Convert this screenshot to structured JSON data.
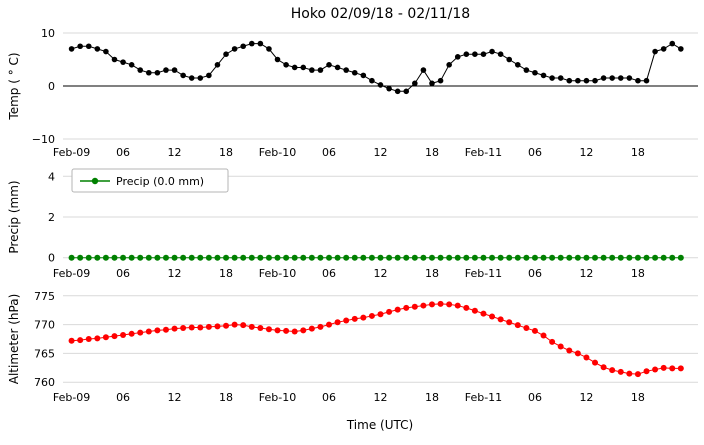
{
  "title": "Hoko 02/09/18 - 02/11/18",
  "xlabel": "Time (UTC)",
  "x_range": [
    -1,
    73
  ],
  "x_ticks": [
    0,
    6,
    12,
    18,
    24,
    30,
    36,
    42,
    48,
    54,
    60,
    66
  ],
  "x_ticklabels": [
    "Feb-09",
    "06",
    "12",
    "18",
    "Feb-10",
    "06",
    "12",
    "18",
    "Feb-11",
    "06",
    "12",
    "18"
  ],
  "x_hours": [
    0,
    1,
    2,
    3,
    4,
    5,
    6,
    7,
    8,
    9,
    10,
    11,
    12,
    13,
    14,
    15,
    16,
    17,
    18,
    19,
    20,
    21,
    22,
    23,
    24,
    25,
    26,
    27,
    28,
    29,
    30,
    31,
    32,
    33,
    34,
    35,
    36,
    37,
    38,
    39,
    40,
    41,
    42,
    43,
    44,
    45,
    46,
    47,
    48,
    49,
    50,
    51,
    52,
    53,
    54,
    55,
    56,
    57,
    58,
    59,
    60,
    61,
    62,
    63,
    64,
    65,
    66,
    67,
    68,
    69,
    70,
    71
  ],
  "chart_data": [
    {
      "type": "line",
      "name": "temperature",
      "ylabel": "Temp ( ° C)",
      "ylim": [
        -10,
        10
      ],
      "yticks": [
        -10,
        0,
        10
      ],
      "color": "#000000",
      "zero_line": true,
      "values": [
        7,
        7.5,
        7.5,
        7,
        6.5,
        5,
        4.5,
        4,
        3,
        2.5,
        2.5,
        3,
        3,
        2,
        1.5,
        1.5,
        2,
        4,
        6,
        7,
        7.5,
        8,
        8,
        7,
        5,
        4,
        3.5,
        3.5,
        3,
        3,
        4,
        3.5,
        3,
        2.5,
        2,
        1,
        0.2,
        -0.5,
        -1,
        -1,
        0.5,
        3,
        0.5,
        1,
        4,
        5.5,
        6,
        6,
        6,
        6.5,
        6,
        5,
        4,
        3,
        2.5,
        2,
        1.5,
        1.5,
        1,
        1,
        1,
        1,
        1.5,
        1.5,
        1.5,
        1.5,
        1,
        1,
        6.5,
        7,
        8,
        7
      ]
    },
    {
      "type": "line",
      "name": "precip",
      "ylabel": "Precip (mm)",
      "ylim": [
        -0.21,
        4.21
      ],
      "yticks": [
        0,
        2,
        4
      ],
      "color": "#008000",
      "legend": "Precip (0.0 mm)",
      "values": [
        0,
        0,
        0,
        0,
        0,
        0,
        0,
        0,
        0,
        0,
        0,
        0,
        0,
        0,
        0,
        0,
        0,
        0,
        0,
        0,
        0,
        0,
        0,
        0,
        0,
        0,
        0,
        0,
        0,
        0,
        0,
        0,
        0,
        0,
        0,
        0,
        0,
        0,
        0,
        0,
        0,
        0,
        0,
        0,
        0,
        0,
        0,
        0,
        0,
        0,
        0,
        0,
        0,
        0,
        0,
        0,
        0,
        0,
        0,
        0,
        0,
        0,
        0,
        0,
        0,
        0,
        0,
        0,
        0,
        0,
        0,
        0
      ]
    },
    {
      "type": "line",
      "name": "altimeter",
      "ylabel": "Altimeter (hPa)",
      "ylim": [
        759,
        776
      ],
      "yticks": [
        760,
        765,
        770,
        775
      ],
      "color": "#ff0000",
      "values": [
        767.2,
        767.3,
        767.5,
        767.6,
        767.8,
        768.0,
        768.2,
        768.4,
        768.6,
        768.8,
        769.0,
        769.1,
        769.3,
        769.4,
        769.5,
        769.5,
        769.6,
        769.7,
        769.8,
        770.0,
        769.9,
        769.6,
        769.4,
        769.2,
        769.0,
        768.9,
        768.8,
        769.0,
        769.3,
        769.6,
        770.0,
        770.4,
        770.7,
        771.0,
        771.2,
        771.5,
        771.8,
        772.2,
        772.6,
        772.9,
        773.1,
        773.3,
        773.5,
        773.6,
        773.5,
        773.3,
        772.9,
        772.4,
        771.9,
        771.4,
        770.9,
        770.4,
        769.9,
        769.4,
        768.9,
        768.1,
        767.0,
        766.2,
        765.5,
        765.0,
        764.3,
        763.4,
        762.6,
        762.1,
        761.8,
        761.5,
        761.4,
        761.9,
        762.2,
        762.5,
        762.4,
        762.4
      ]
    }
  ]
}
